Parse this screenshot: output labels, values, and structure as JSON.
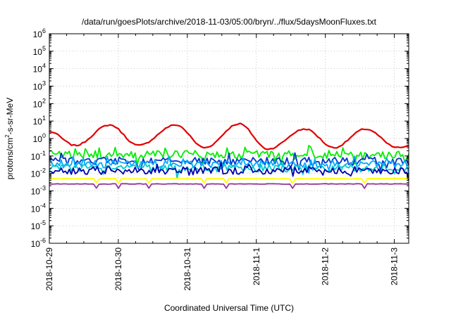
{
  "chart_data": {
    "type": "line",
    "title": "/data/run/goesPlots/archive/2018-11-03/05:00/bryn/../flux/5daysMoonFluxes.txt",
    "xlabel": "Coordinated Universal Time (UTC)",
    "ylabel_parts": [
      "protons/cm",
      "2",
      "-s-sr-MeV"
    ],
    "y_scale": "log",
    "ylim": [
      1e-06,
      1000000.0
    ],
    "y_ticks": [
      {
        "value": 1e-06,
        "base": "10",
        "exp": "-6"
      },
      {
        "value": 1e-05,
        "base": "10",
        "exp": "-5"
      },
      {
        "value": 0.0001,
        "base": "10",
        "exp": "-4"
      },
      {
        "value": 0.001,
        "base": "10",
        "exp": "-3"
      },
      {
        "value": 0.01,
        "base": "10",
        "exp": "-2"
      },
      {
        "value": 0.1,
        "base": "10",
        "exp": "-1"
      },
      {
        "value": 1,
        "base": "10",
        "exp": "0"
      },
      {
        "value": 10,
        "base": "10",
        "exp": "1"
      },
      {
        "value": 100,
        "base": "10",
        "exp": "2"
      },
      {
        "value": 1000,
        "base": "10",
        "exp": "3"
      },
      {
        "value": 10000,
        "base": "10",
        "exp": "4"
      },
      {
        "value": 100000,
        "base": "10",
        "exp": "5"
      },
      {
        "value": 1000000,
        "base": "10",
        "exp": "6"
      }
    ],
    "xlim": [
      "2018-10-29 00:00",
      "2018-11-03 05:00"
    ],
    "x_ticks": [
      "2018-10-29",
      "2018-10-30",
      "2018-10-31",
      "2018-11-1",
      "2018-11-2",
      "2018-11-3"
    ],
    "grid": true,
    "series": [
      {
        "color": "#e00000",
        "pattern": "diurnal",
        "x": [
          "2018-10-29 00:00",
          "2018-10-29 09:00",
          "2018-10-29 21:00",
          "2018-10-30 07:00",
          "2018-10-30 20:00",
          "2018-10-31 06:00",
          "2018-10-31 18:00",
          "2018-11-01 04:00",
          "2018-11-01 17:00",
          "2018-11-02 03:00",
          "2018-11-02 14:00",
          "2018-11-03 01:00",
          "2018-11-03 05:00"
        ],
        "values": [
          2.5,
          0.4,
          6,
          0.4,
          6,
          0.3,
          7,
          0.25,
          3.5,
          0.3,
          3.5,
          0.3,
          0.35
        ]
      },
      {
        "color": "#00ee00",
        "pattern": "noisy",
        "x": [
          "2018-10-29 00:00",
          "2018-11-03 05:00"
        ],
        "values": [
          0.12,
          0.12
        ]
      },
      {
        "color": "#0033cc",
        "pattern": "noisy",
        "x": [
          "2018-10-29 00:00",
          "2018-11-03 05:00"
        ],
        "values": [
          0.05,
          0.05
        ]
      },
      {
        "color": "#00aaff",
        "pattern": "noisy",
        "x": [
          "2018-10-29 00:00",
          "2018-11-03 05:00"
        ],
        "values": [
          0.035,
          0.035
        ]
      },
      {
        "color": "#00cccc",
        "pattern": "noisy",
        "x": [
          "2018-10-29 00:00",
          "2018-11-03 05:00"
        ],
        "values": [
          0.02,
          0.02
        ]
      },
      {
        "color": "#0000aa",
        "pattern": "noisy",
        "x": [
          "2018-10-29 00:00",
          "2018-11-03 05:00"
        ],
        "values": [
          0.015,
          0.015
        ]
      },
      {
        "color": "#ffff00",
        "pattern": "flat",
        "x": [
          "2018-10-29 00:00",
          "2018-11-03 05:00"
        ],
        "values": [
          0.005,
          0.005
        ]
      },
      {
        "color": "#993399",
        "pattern": "flat",
        "x": [
          "2018-10-29 00:00",
          "2018-11-03 05:00"
        ],
        "values": [
          0.0025,
          0.0025
        ]
      }
    ]
  }
}
